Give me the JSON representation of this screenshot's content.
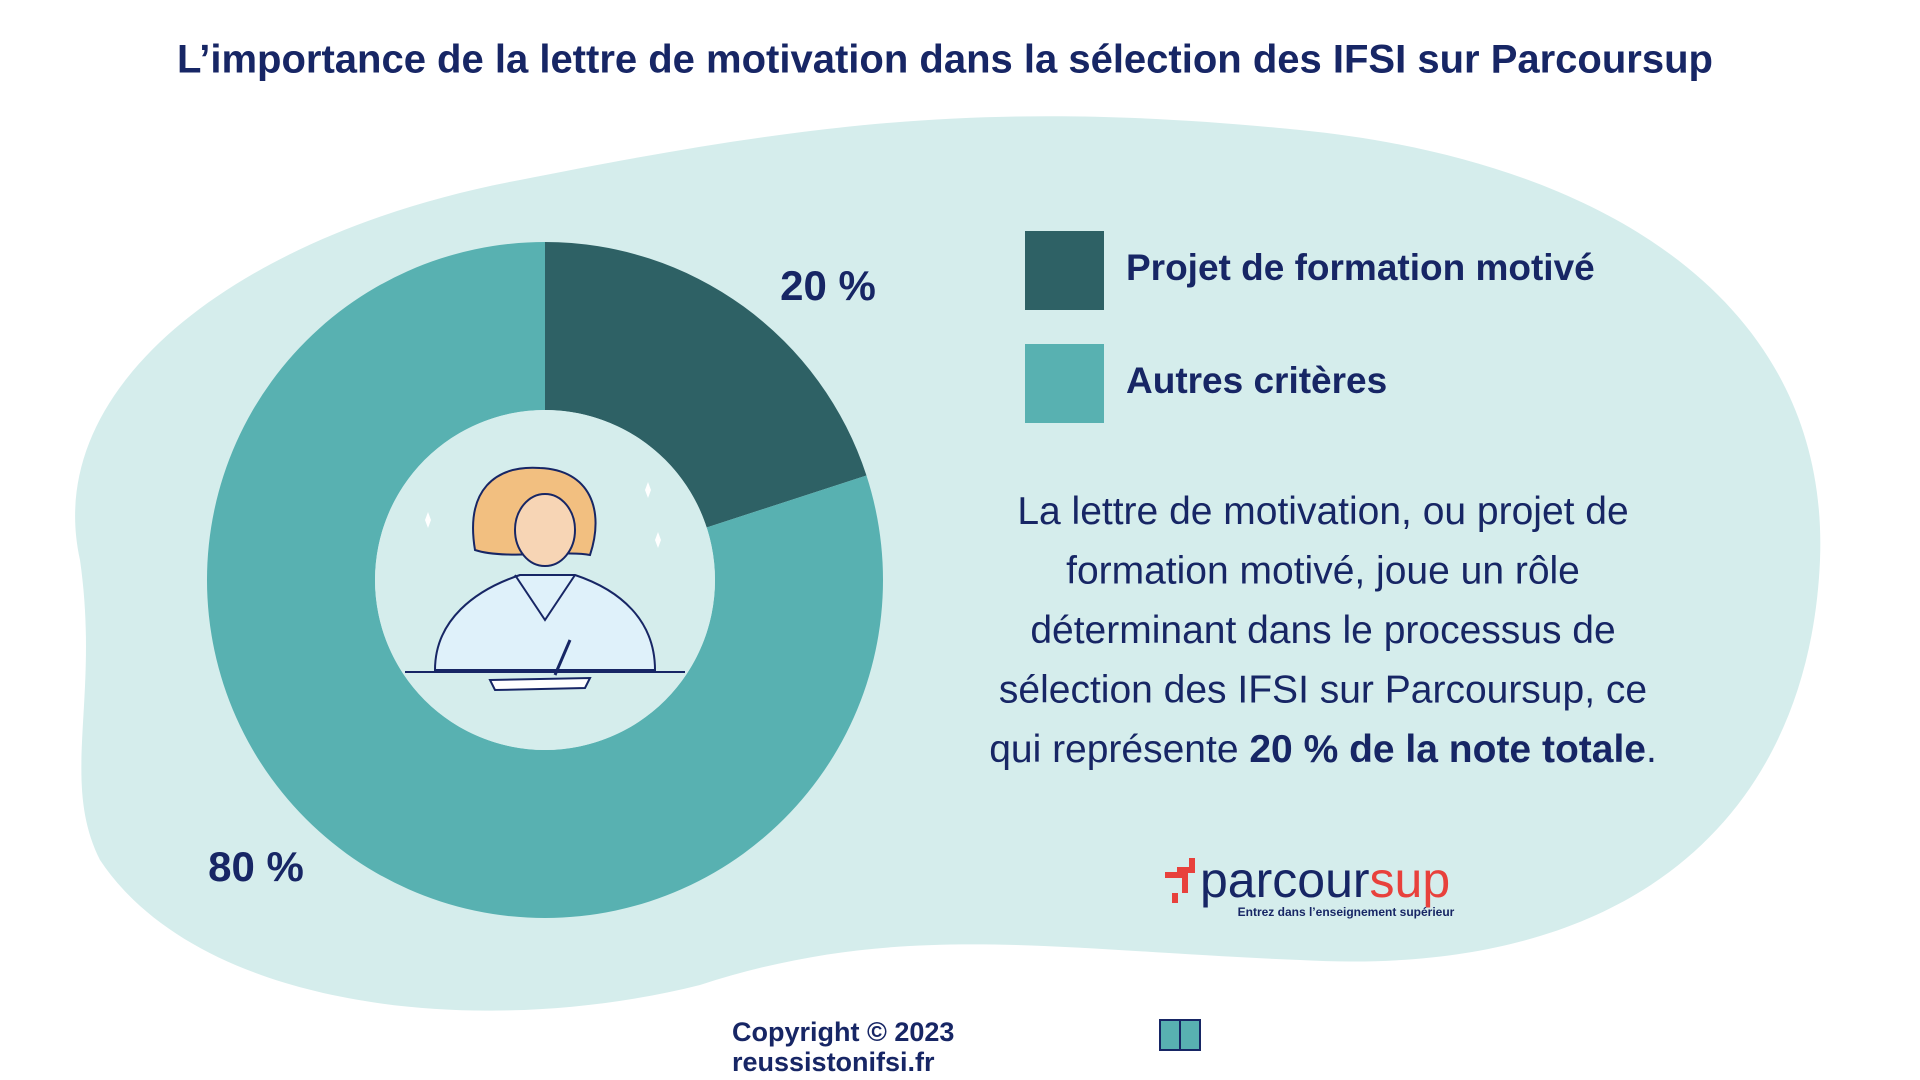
{
  "chart_data": {
    "type": "donut",
    "title": "L’importance de la lettre de motivation dans la sélection des IFSI sur Parcoursup",
    "categories": [
      "Projet de formation motivé",
      "Autres critères"
    ],
    "values": [
      20,
      80
    ],
    "value_labels": [
      "20 %",
      "80 %"
    ],
    "colors": [
      "#2e6165",
      "#58b1b1"
    ],
    "legend": "right"
  },
  "description": {
    "lines": [
      "La lettre de motivation, ou projet de",
      "formation motivé, joue un rôle",
      "déterminant dans le processus de",
      "sélection des IFSI sur Parcoursup, ce"
    ],
    "last_line": [
      "qui représente ",
      "20 % de la note totale",
      "."
    ]
  },
  "logo": {
    "name_parts": [
      "parcour",
      "sup"
    ],
    "tagline": "Entrez dans l’enseignement supérieur"
  },
  "footer": {
    "copyright": "Copyright © 2023",
    "website": "reussistonifsi.fr"
  }
}
